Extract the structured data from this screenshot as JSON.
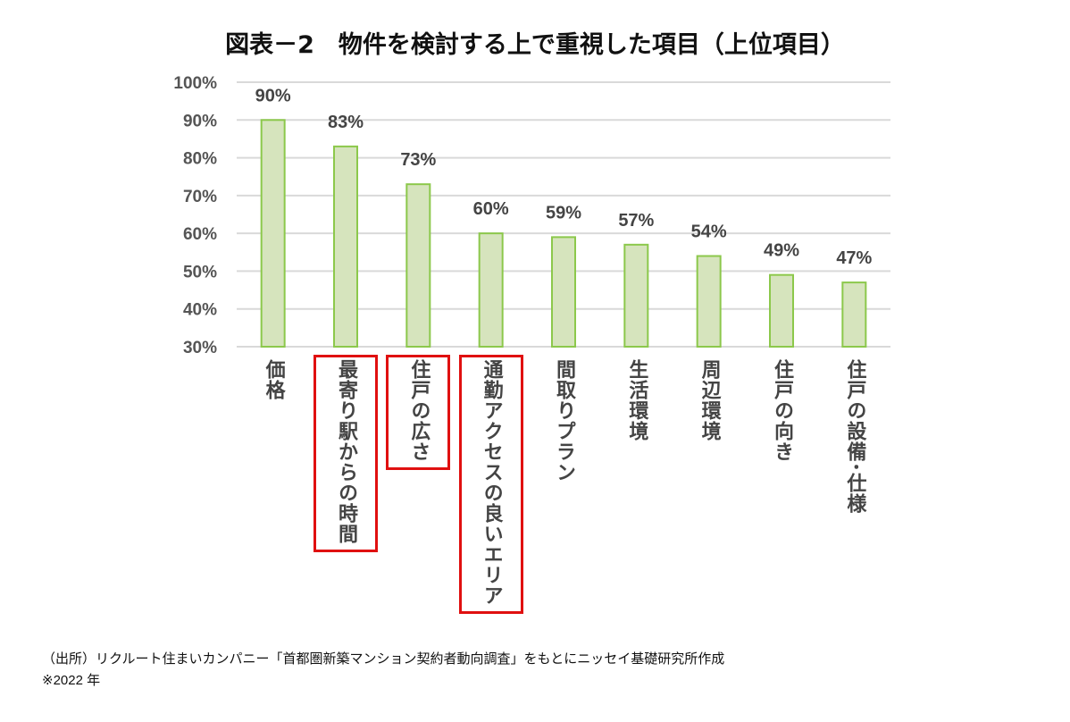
{
  "chart_data": {
    "type": "bar",
    "title": "図表－2　物件を検討する上で重視した項目（上位項目）",
    "categories": [
      "価格",
      "最寄り駅からの時間",
      "住戸の広さ",
      "通勤アクセスの良いエリア",
      "間取りプラン",
      "生活環境",
      "周辺環境",
      "住戸の向き",
      "住戸の設備･仕様"
    ],
    "values": [
      90,
      83,
      73,
      60,
      59,
      57,
      54,
      49,
      47
    ],
    "data_labels": [
      "90%",
      "83%",
      "73%",
      "60%",
      "59%",
      "57%",
      "54%",
      "49%",
      "47%"
    ],
    "highlighted": [
      false,
      true,
      true,
      true,
      false,
      false,
      false,
      false,
      false
    ],
    "ylim": [
      30,
      100
    ],
    "yticks": [
      30,
      40,
      50,
      60,
      70,
      80,
      90,
      100
    ],
    "ytick_labels": [
      "30%",
      "40%",
      "50%",
      "60%",
      "70%",
      "80%",
      "90%",
      "100%"
    ],
    "xlabel": "",
    "ylabel": "",
    "grid": true,
    "colors": {
      "bar_fill": "#d6e4bd",
      "bar_stroke": "#8cc84b",
      "grid": "#d9d9d9",
      "highlight": "#e01010"
    }
  },
  "source": {
    "line1": "（出所）リクルート住まいカンパニー「首都圏新築マンション契約者動向調査」をもとにニッセイ基礎研究所作成",
    "line2": "※2022 年"
  }
}
